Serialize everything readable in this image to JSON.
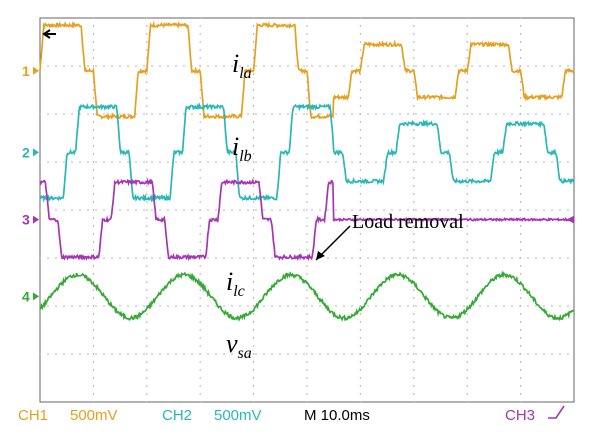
{
  "chart_data": {
    "type": "line",
    "title": "",
    "xlabel": "",
    "ylabel": "",
    "grid": true,
    "time_div_ms": 10,
    "divisions_x": 10,
    "divisions_y": 8,
    "load_removal_ms": 55,
    "series": [
      {
        "name": "i_la",
        "label": "i",
        "sub": "la",
        "channel": "1",
        "color": "#e6a020",
        "offset_div": 2.9,
        "kind": "quasi-square",
        "phase_ms": 0,
        "amp_before_div": 0.95,
        "amp_after_div": 0.55
      },
      {
        "name": "i_lb",
        "label": "i",
        "sub": "lb",
        "channel": "2",
        "color": "#2ab7b7",
        "offset_div": 1.2,
        "kind": "quasi-square",
        "phase_ms": 6.67,
        "amp_before_div": 0.95,
        "amp_after_div": 0.6
      },
      {
        "name": "i_lc",
        "label": "i",
        "sub": "lc",
        "channel": "3",
        "color": "#a535b5",
        "offset_div": -0.2,
        "kind": "quasi-square",
        "phase_ms": 13.33,
        "amp_before_div": 0.78,
        "amp_after_div": 0.0
      },
      {
        "name": "v_sa",
        "label": "v",
        "sub": "sa",
        "channel": "4",
        "color": "#35a835",
        "offset_div": -1.8,
        "kind": "sine",
        "phase_ms": 0,
        "amp_before_div": 0.45,
        "amp_after_div": 0.45
      }
    ],
    "annotations": [
      {
        "text": "Load removal"
      }
    ]
  },
  "status_bar": {
    "ch1": {
      "name": "CH1",
      "value": "500mV"
    },
    "ch2": {
      "name": "CH2",
      "value": "500mV"
    },
    "timebase": "M 10.0ms",
    "trigger": "CH3"
  }
}
